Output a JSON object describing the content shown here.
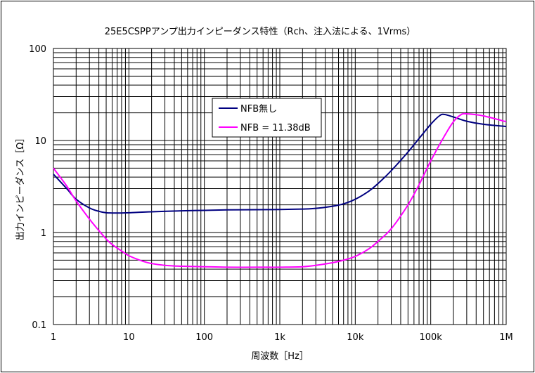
{
  "chart_data": {
    "type": "line",
    "title": "25E5CSPPアンプ出力インピーダンス特性（Rch、注入法による、1Vrms）",
    "xlabel": "周波数［Hz］",
    "ylabel": "出力インピーダンス［Ω］",
    "x_scale": "log",
    "y_scale": "log",
    "xlim": [
      1,
      1000000
    ],
    "ylim": [
      0.1,
      100
    ],
    "grid": true,
    "legend_position": "center",
    "x_ticks": [
      {
        "value": 1,
        "label": "1"
      },
      {
        "value": 10,
        "label": "10"
      },
      {
        "value": 100,
        "label": "100"
      },
      {
        "value": 1000,
        "label": "1k"
      },
      {
        "value": 10000,
        "label": "10k"
      },
      {
        "value": 100000,
        "label": "100k"
      },
      {
        "value": 1000000,
        "label": "1M"
      }
    ],
    "y_ticks": [
      {
        "value": 0.1,
        "label": "0.1"
      },
      {
        "value": 1,
        "label": "1"
      },
      {
        "value": 10,
        "label": "10"
      },
      {
        "value": 100,
        "label": "100"
      }
    ],
    "series": [
      {
        "name": "NFB無し",
        "color": "#000080",
        "x": [
          1,
          1.5,
          2,
          3,
          4,
          5,
          6,
          8,
          10,
          20,
          50,
          100,
          200,
          500,
          1000,
          2000,
          3000,
          5000,
          7000,
          10000,
          15000,
          20000,
          30000,
          50000,
          70000,
          100000,
          130000,
          150000,
          200000,
          300000,
          500000,
          1000000
        ],
        "y": [
          4.3,
          3.0,
          2.3,
          1.85,
          1.7,
          1.64,
          1.63,
          1.63,
          1.64,
          1.68,
          1.72,
          1.74,
          1.76,
          1.77,
          1.78,
          1.8,
          1.83,
          1.93,
          2.05,
          2.3,
          2.8,
          3.4,
          4.7,
          7.5,
          10.5,
          15.0,
          18.5,
          19.2,
          18.0,
          16.2,
          15.0,
          14.2
        ]
      },
      {
        "name": "NFB = 11.38dB",
        "color": "#ff00ff",
        "x": [
          1,
          1.5,
          2,
          3,
          4,
          5,
          6,
          8,
          10,
          15,
          20,
          30,
          50,
          100,
          200,
          500,
          1000,
          2000,
          3000,
          5000,
          7000,
          10000,
          15000,
          20000,
          30000,
          50000,
          70000,
          100000,
          150000,
          200000,
          250000,
          300000,
          500000,
          1000000
        ],
        "y": [
          5.0,
          3.2,
          2.2,
          1.4,
          1.05,
          0.85,
          0.74,
          0.63,
          0.56,
          0.49,
          0.46,
          0.44,
          0.43,
          0.425,
          0.42,
          0.42,
          0.42,
          0.425,
          0.44,
          0.47,
          0.5,
          0.55,
          0.66,
          0.8,
          1.1,
          2.0,
          3.3,
          6.0,
          11.0,
          16.0,
          19.0,
          19.5,
          18.5,
          16.0
        ]
      }
    ]
  }
}
